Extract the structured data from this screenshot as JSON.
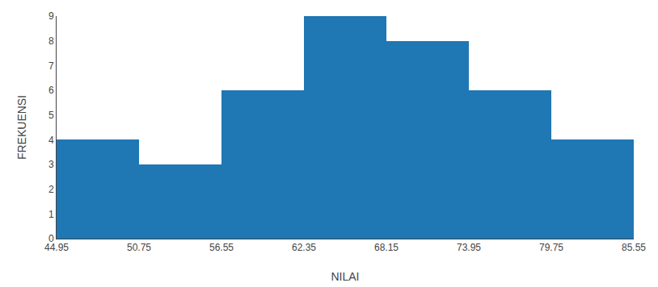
{
  "chart_data": {
    "type": "histogram",
    "bins": [
      44.95,
      50.75,
      56.55,
      62.35,
      68.15,
      73.95,
      79.75,
      85.55
    ],
    "values": [
      4,
      3,
      6,
      9,
      8,
      6,
      4
    ],
    "xlabel": "NILAI",
    "ylabel": "FREKUENSI",
    "xlim": [
      44.95,
      85.55
    ],
    "xticks": [
      44.95,
      50.75,
      56.55,
      62.35,
      68.15,
      73.95,
      79.75,
      85.55
    ],
    "ylim": [
      0,
      9
    ],
    "yticks": [
      0,
      1,
      2,
      3,
      4,
      5,
      6,
      7,
      8,
      9
    ],
    "grid": false
  }
}
